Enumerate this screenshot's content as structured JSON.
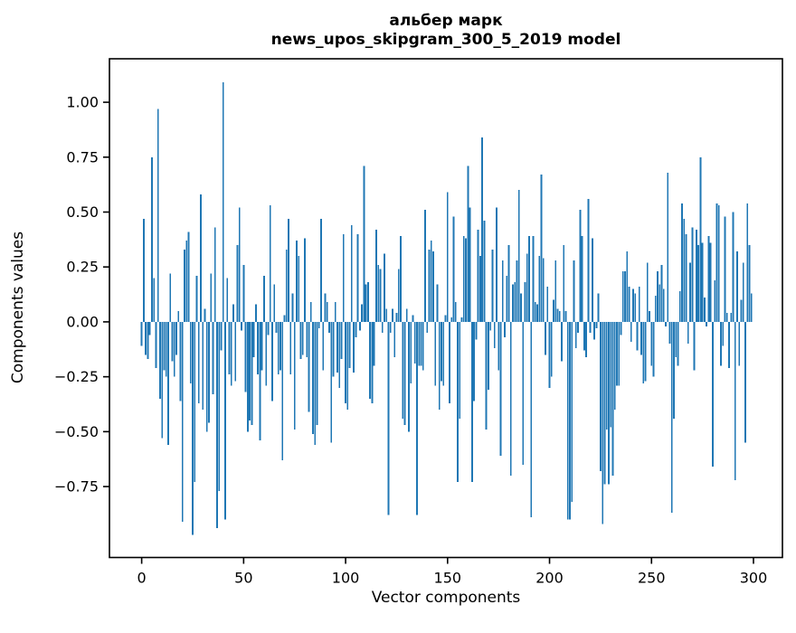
{
  "title": {
    "line1": "альбер марк",
    "line2": "news_upos_skipgram_300_5_2019 model"
  },
  "chart_data": {
    "type": "bar",
    "title": "альбер марк — news_upos_skipgram_300_5_2019 model",
    "xlabel": "Vector components",
    "ylabel": "Components values",
    "bar_color": "#1f77b4",
    "spine_color": "#000000",
    "legend": "none",
    "grid": false,
    "xlim": [
      -15.8,
      314.2
    ],
    "ylim": [
      -1.073,
      1.198
    ],
    "x_tick_values": [
      0,
      50,
      100,
      150,
      200,
      250,
      300
    ],
    "x_tick_labels": [
      "0",
      "50",
      "100",
      "150",
      "200",
      "250",
      "300"
    ],
    "y_tick_values": [
      1.0,
      0.75,
      0.5,
      0.25,
      0.0,
      -0.25,
      -0.5,
      -0.75
    ],
    "y_tick_labels": [
      "1.00",
      "0.75",
      "0.50",
      "0.25",
      "0.00",
      "−0.25",
      "−0.50",
      "−0.75"
    ],
    "x_start": 0,
    "bar_width_units": 0.8,
    "values": [
      -0.11,
      0.47,
      -0.15,
      -0.17,
      -0.06,
      0.75,
      0.2,
      -0.21,
      0.97,
      -0.35,
      -0.53,
      -0.22,
      -0.25,
      -0.56,
      0.22,
      -0.18,
      -0.25,
      -0.15,
      0.05,
      -0.36,
      -0.91,
      0.33,
      0.37,
      0.41,
      -0.28,
      -0.97,
      -0.73,
      0.21,
      -0.37,
      0.58,
      -0.4,
      0.06,
      -0.5,
      -0.46,
      0.22,
      -0.33,
      0.43,
      -0.94,
      -0.77,
      -0.13,
      1.09,
      -0.9,
      0.2,
      -0.24,
      -0.29,
      0.08,
      -0.27,
      0.35,
      0.52,
      -0.04,
      0.26,
      -0.32,
      -0.5,
      -0.45,
      -0.47,
      -0.16,
      0.08,
      -0.24,
      -0.54,
      -0.22,
      0.21,
      -0.29,
      -0.06,
      0.53,
      -0.36,
      0.17,
      -0.05,
      -0.24,
      -0.22,
      -0.63,
      0.03,
      0.33,
      0.47,
      -0.24,
      0.13,
      -0.49,
      0.37,
      0.3,
      -0.17,
      -0.15,
      0.38,
      -0.16,
      -0.41,
      0.09,
      -0.51,
      -0.56,
      -0.47,
      -0.03,
      0.47,
      -0.22,
      0.13,
      0.09,
      -0.05,
      -0.55,
      -0.25,
      0.09,
      -0.23,
      -0.3,
      -0.17,
      0.4,
      -0.37,
      -0.4,
      -0.21,
      0.44,
      -0.23,
      -0.07,
      0.4,
      -0.04,
      0.08,
      0.71,
      0.17,
      0.18,
      -0.35,
      -0.37,
      -0.2,
      0.42,
      0.26,
      0.24,
      -0.05,
      0.31,
      0.06,
      -0.88,
      -0.05,
      0.06,
      -0.16,
      0.04,
      0.24,
      0.39,
      -0.44,
      -0.47,
      0.06,
      -0.5,
      -0.28,
      0.03,
      -0.19,
      -0.88,
      -0.2,
      -0.2,
      -0.22,
      0.51,
      -0.05,
      0.33,
      0.37,
      0.32,
      -0.29,
      0.17,
      -0.4,
      -0.27,
      -0.29,
      0.03,
      0.59,
      -0.37,
      0.02,
      0.48,
      0.09,
      -0.73,
      -0.44,
      0.02,
      0.39,
      0.38,
      0.71,
      0.52,
      -0.73,
      -0.36,
      -0.08,
      0.42,
      0.3,
      0.84,
      0.46,
      -0.49,
      -0.31,
      -0.04,
      0.33,
      -0.12,
      0.52,
      -0.22,
      -0.61,
      0.28,
      -0.07,
      0.21,
      0.35,
      -0.7,
      0.17,
      0.18,
      0.28,
      0.6,
      0.13,
      -0.65,
      0.18,
      0.31,
      0.39,
      -0.89,
      0.39,
      0.09,
      0.08,
      0.3,
      0.67,
      0.29,
      -0.15,
      0.16,
      -0.3,
      -0.25,
      0.1,
      0.28,
      0.06,
      0.05,
      -0.18,
      0.35,
      0.05,
      -0.9,
      -0.9,
      -0.82,
      0.28,
      -0.12,
      -0.05,
      0.51,
      0.39,
      -0.13,
      -0.16,
      0.56,
      -0.05,
      0.38,
      -0.08,
      -0.03,
      0.13,
      -0.68,
      -0.92,
      -0.74,
      -0.49,
      -0.74,
      -0.48,
      -0.7,
      -0.4,
      -0.29,
      -0.29,
      -0.06,
      0.23,
      0.23,
      0.32,
      0.16,
      -0.09,
      0.15,
      0.13,
      -0.13,
      0.16,
      -0.15,
      -0.28,
      -0.27,
      0.27,
      0.05,
      -0.2,
      -0.25,
      0.12,
      0.23,
      0.17,
      0.26,
      0.15,
      -0.02,
      0.68,
      -0.1,
      -0.87,
      -0.44,
      -0.16,
      -0.2,
      0.14,
      0.54,
      0.47,
      0.4,
      -0.1,
      0.27,
      0.43,
      -0.22,
      0.42,
      0.35,
      0.75,
      0.36,
      0.11,
      -0.02,
      0.39,
      0.36,
      -0.66,
      0.19,
      0.54,
      0.53,
      -0.2,
      -0.11,
      0.48,
      0.04,
      -0.21,
      0.04,
      0.5,
      -0.72,
      0.32,
      -0.2,
      0.1,
      0.27,
      -0.55,
      0.54,
      0.35,
      0.13
    ]
  }
}
